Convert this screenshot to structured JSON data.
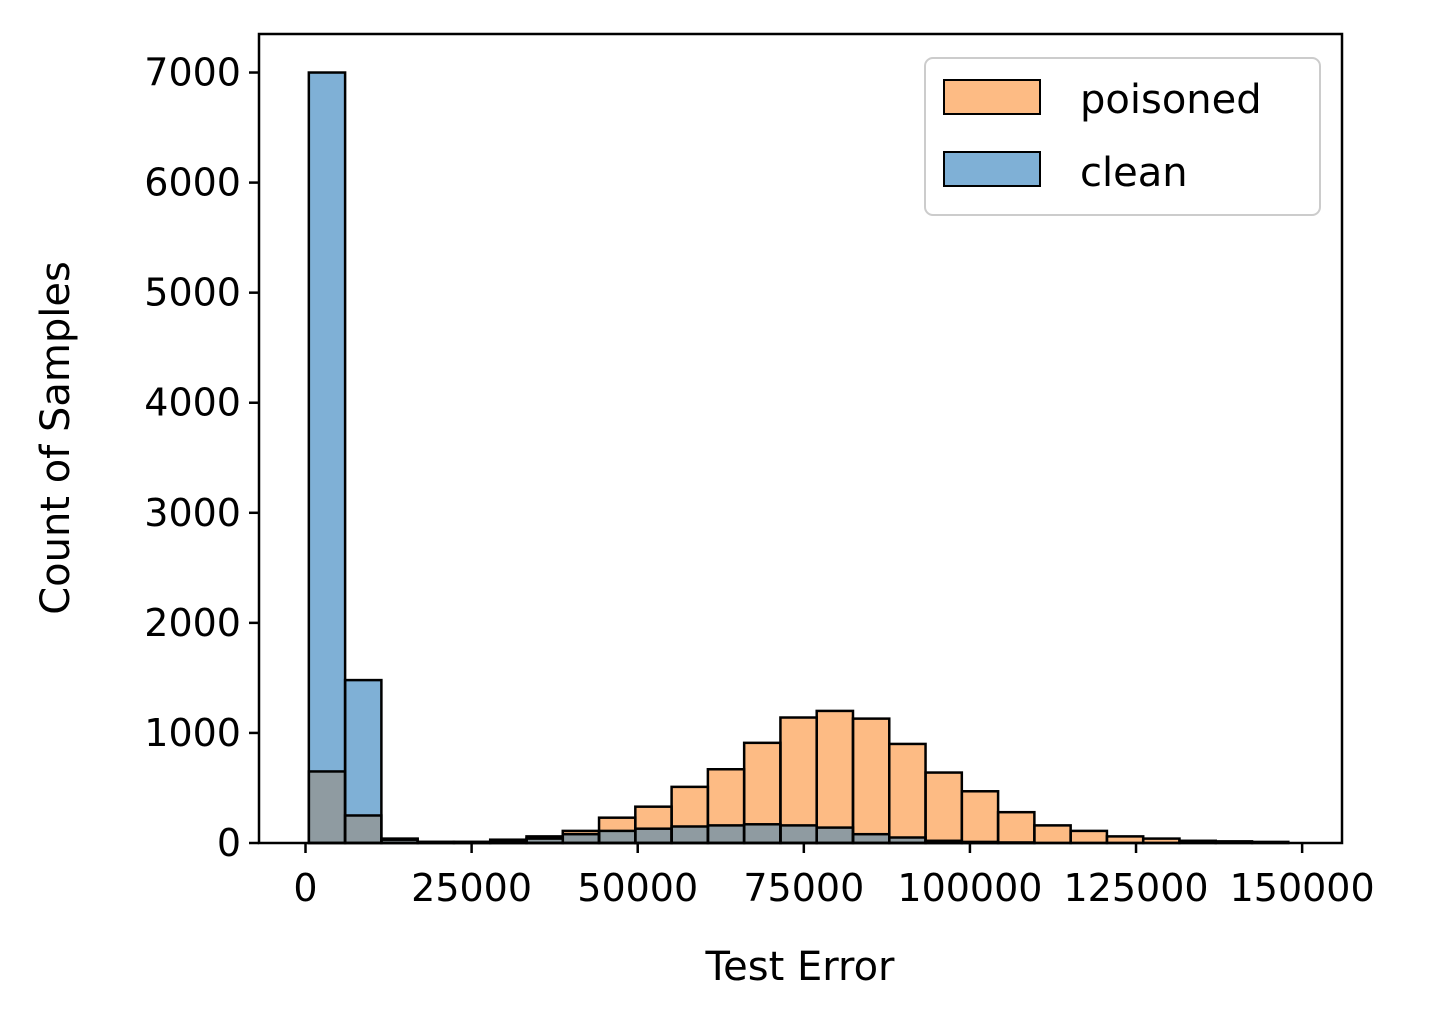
{
  "chart_data": {
    "type": "bar",
    "title": "",
    "xlabel": "Test Error",
    "ylabel": "Count of Samples",
    "xlim": [
      -7000,
      156000
    ],
    "ylim": [
      0,
      7350
    ],
    "xticks": [
      0,
      25000,
      50000,
      75000,
      100000,
      125000,
      150000
    ],
    "xtick_labels": [
      "0",
      "25000",
      "50000",
      "75000",
      "100000",
      "125000",
      "150000"
    ],
    "yticks": [
      0,
      1000,
      2000,
      3000,
      4000,
      5000,
      6000,
      7000
    ],
    "ytick_labels": [
      "0",
      "1000",
      "2000",
      "3000",
      "4000",
      "5000",
      "6000",
      "7000"
    ],
    "grid": false,
    "legend_position": "top-right",
    "bin_edges": [
      500,
      5960,
      11420,
      16880,
      22340,
      27800,
      33260,
      38720,
      44180,
      49640,
      55100,
      60560,
      66020,
      71480,
      76940,
      82400,
      87860,
      93320,
      98780,
      104240,
      109700,
      115160,
      120620,
      126080,
      131540,
      137000,
      142460,
      147920
    ],
    "series": [
      {
        "name": "poisoned",
        "color": "#fdbb84",
        "edge": "#000000",
        "alpha": 0.5,
        "values": [
          650,
          250,
          30,
          10,
          10,
          30,
          60,
          110,
          230,
          330,
          510,
          670,
          910,
          1140,
          1200,
          1130,
          900,
          640,
          470,
          280,
          160,
          110,
          60,
          40,
          20,
          15,
          10
        ]
      },
      {
        "name": "clean",
        "color": "#7fb0d6",
        "edge": "#000000",
        "alpha": 0.5,
        "values": [
          7000,
          1480,
          40,
          10,
          10,
          20,
          40,
          80,
          110,
          130,
          150,
          160,
          170,
          160,
          140,
          80,
          50,
          20,
          10,
          5,
          0,
          0,
          0,
          0,
          0,
          0,
          0
        ]
      }
    ],
    "overlap_color": "#8f9ba1"
  }
}
